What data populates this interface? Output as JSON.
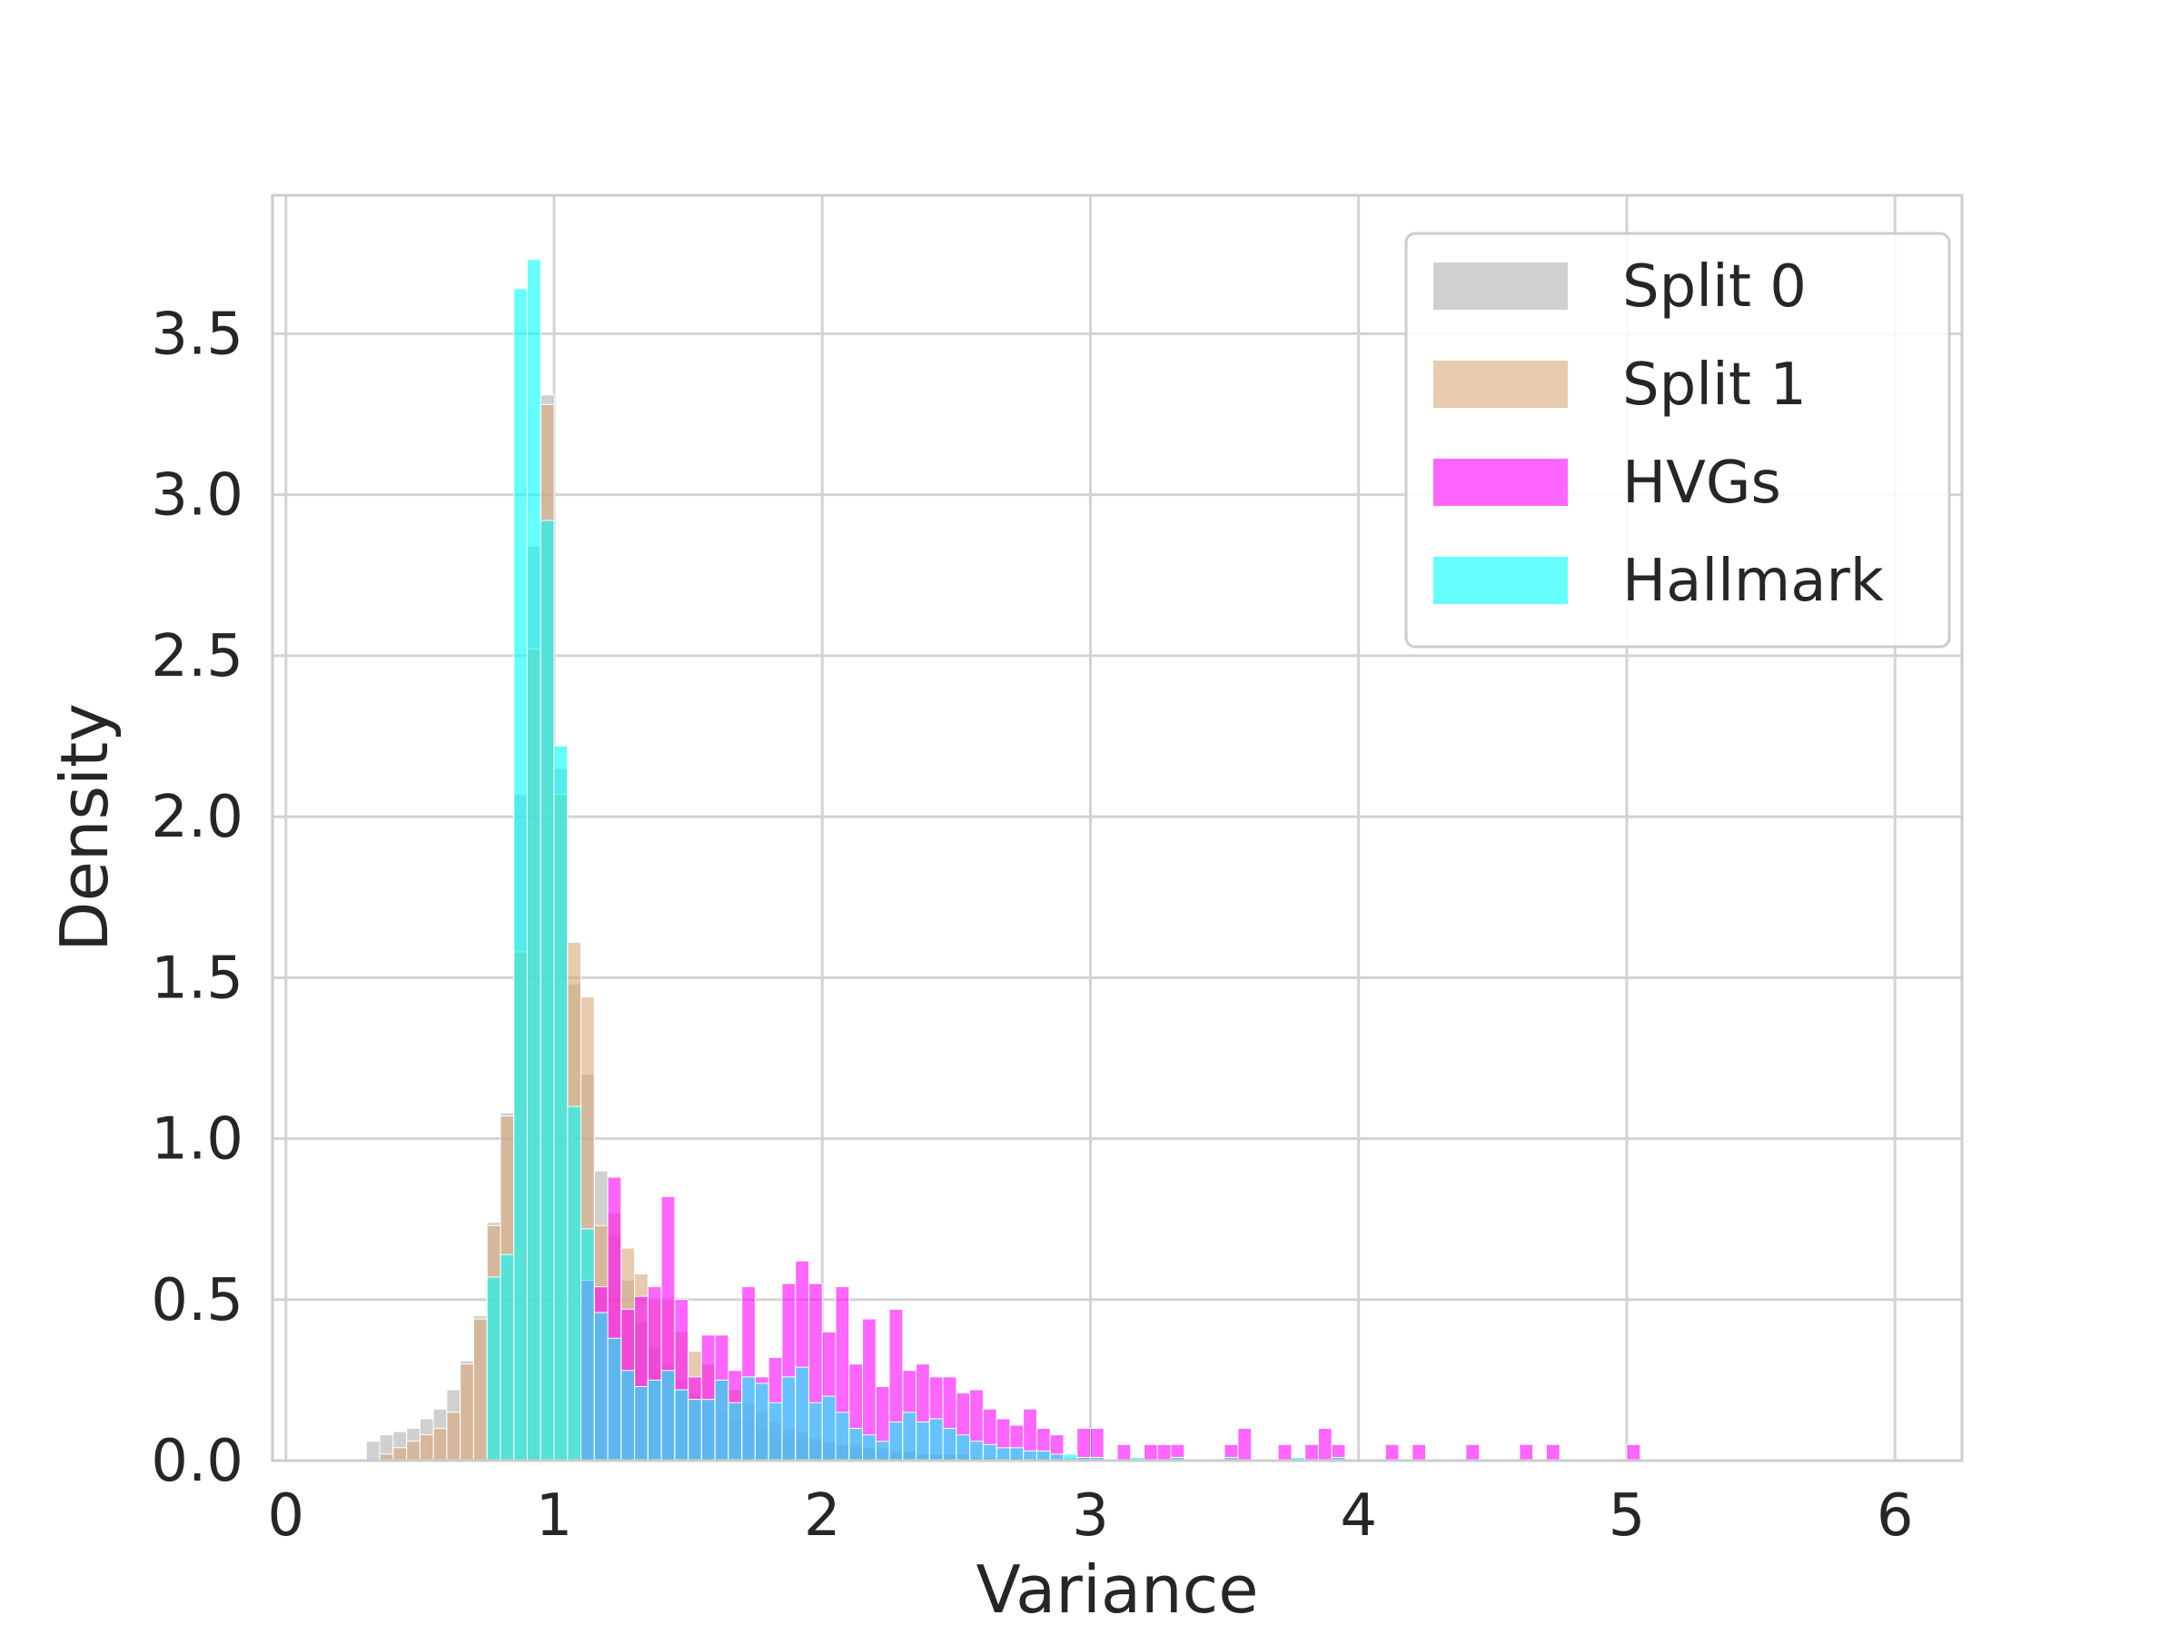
{
  "chart_data": {
    "type": "bar",
    "title": "",
    "xlabel": "Variance",
    "ylabel": "Density",
    "xlim": [
      -0.05,
      6.25
    ],
    "ylim": [
      0,
      3.93
    ],
    "xticks": [
      "0",
      "1",
      "2",
      "3",
      "4",
      "5",
      "6"
    ],
    "yticks": [
      "0.0",
      "0.5",
      "1.0",
      "1.5",
      "2.0",
      "2.5",
      "3.0",
      "3.5"
    ],
    "grid": true,
    "legend_position": "top-right",
    "bin_width": 0.05,
    "series": [
      {
        "name": "Split 0",
        "color": "#b0b0b0",
        "opacity": 0.6,
        "points": [
          [
            0.3,
            0.06
          ],
          [
            0.35,
            0.08
          ],
          [
            0.4,
            0.09
          ],
          [
            0.45,
            0.1
          ],
          [
            0.5,
            0.13
          ],
          [
            0.55,
            0.16
          ],
          [
            0.6,
            0.22
          ],
          [
            0.65,
            0.31
          ],
          [
            0.7,
            0.45
          ],
          [
            0.75,
            0.74
          ],
          [
            0.8,
            1.08
          ],
          [
            0.85,
            2.07
          ],
          [
            0.9,
            2.84
          ],
          [
            0.95,
            3.31
          ],
          [
            1.0,
            2.15
          ],
          [
            1.05,
            1.48
          ],
          [
            1.1,
            1.2
          ],
          [
            1.15,
            0.9
          ],
          [
            1.2,
            0.7
          ],
          [
            1.25,
            0.56
          ],
          [
            1.3,
            0.43
          ],
          [
            1.35,
            0.35
          ],
          [
            1.4,
            0.3
          ],
          [
            1.45,
            0.25
          ],
          [
            1.5,
            0.21
          ],
          [
            1.55,
            0.18
          ],
          [
            1.6,
            0.15
          ],
          [
            1.65,
            0.13
          ],
          [
            1.7,
            0.12
          ],
          [
            1.75,
            0.1
          ],
          [
            1.8,
            0.09
          ],
          [
            1.85,
            0.08
          ],
          [
            1.9,
            0.07
          ],
          [
            1.95,
            0.06
          ],
          [
            2.0,
            0.05
          ],
          [
            2.05,
            0.05
          ],
          [
            2.1,
            0.04
          ],
          [
            2.15,
            0.04
          ],
          [
            2.2,
            0.03
          ],
          [
            2.25,
            0.03
          ],
          [
            2.3,
            0.03
          ],
          [
            2.35,
            0.02
          ],
          [
            2.4,
            0.02
          ],
          [
            2.45,
            0.02
          ],
          [
            2.5,
            0.02
          ],
          [
            2.55,
            0.01
          ],
          [
            2.6,
            0.01
          ],
          [
            2.7,
            0.01
          ],
          [
            2.8,
            0.01
          ],
          [
            2.9,
            0.01
          ]
        ]
      },
      {
        "name": "Split 1",
        "color": "#d9a679",
        "opacity": 0.6,
        "points": [
          [
            0.35,
            0.02
          ],
          [
            0.4,
            0.04
          ],
          [
            0.45,
            0.06
          ],
          [
            0.5,
            0.08
          ],
          [
            0.55,
            0.1
          ],
          [
            0.6,
            0.15
          ],
          [
            0.65,
            0.3
          ],
          [
            0.7,
            0.44
          ],
          [
            0.75,
            0.73
          ],
          [
            0.8,
            1.07
          ],
          [
            0.85,
            1.58
          ],
          [
            0.9,
            2.52
          ],
          [
            0.95,
            3.28
          ],
          [
            1.0,
            2.07
          ],
          [
            1.05,
            1.61
          ],
          [
            1.1,
            1.44
          ],
          [
            1.15,
            0.73
          ],
          [
            1.2,
            0.77
          ],
          [
            1.25,
            0.66
          ],
          [
            1.3,
            0.58
          ],
          [
            1.35,
            0.5
          ],
          [
            1.4,
            0.5
          ],
          [
            1.45,
            0.4
          ],
          [
            1.5,
            0.34
          ],
          [
            1.55,
            0.3
          ],
          [
            1.6,
            0.25
          ],
          [
            1.65,
            0.22
          ],
          [
            1.7,
            0.18
          ],
          [
            1.75,
            0.15
          ],
          [
            1.8,
            0.12
          ],
          [
            1.85,
            0.1
          ],
          [
            1.9,
            0.09
          ],
          [
            1.95,
            0.07
          ],
          [
            2.0,
            0.06
          ],
          [
            2.05,
            0.05
          ],
          [
            2.1,
            0.05
          ],
          [
            2.15,
            0.04
          ],
          [
            2.2,
            0.04
          ],
          [
            2.25,
            0.03
          ],
          [
            2.3,
            0.03
          ],
          [
            2.35,
            0.02
          ],
          [
            2.4,
            0.02
          ],
          [
            2.45,
            0.02
          ],
          [
            2.5,
            0.02
          ],
          [
            2.55,
            0.01
          ],
          [
            2.6,
            0.01
          ],
          [
            2.7,
            0.01
          ]
        ]
      },
      {
        "name": "HVGs",
        "color": "#ff00ff",
        "opacity": 0.6,
        "points": [
          [
            1.1,
            0.56
          ],
          [
            1.15,
            0.54
          ],
          [
            1.2,
            0.88
          ],
          [
            1.25,
            0.47
          ],
          [
            1.3,
            0.51
          ],
          [
            1.35,
            0.54
          ],
          [
            1.4,
            0.82
          ],
          [
            1.45,
            0.5
          ],
          [
            1.5,
            0.26
          ],
          [
            1.55,
            0.39
          ],
          [
            1.6,
            0.39
          ],
          [
            1.65,
            0.28
          ],
          [
            1.7,
            0.54
          ],
          [
            1.75,
            0.26
          ],
          [
            1.8,
            0.32
          ],
          [
            1.85,
            0.55
          ],
          [
            1.9,
            0.62
          ],
          [
            1.95,
            0.55
          ],
          [
            2.0,
            0.4
          ],
          [
            2.05,
            0.54
          ],
          [
            2.1,
            0.3
          ],
          [
            2.15,
            0.44
          ],
          [
            2.2,
            0.23
          ],
          [
            2.25,
            0.47
          ],
          [
            2.3,
            0.28
          ],
          [
            2.35,
            0.3
          ],
          [
            2.4,
            0.26
          ],
          [
            2.45,
            0.26
          ],
          [
            2.5,
            0.21
          ],
          [
            2.55,
            0.22
          ],
          [
            2.6,
            0.16
          ],
          [
            2.65,
            0.13
          ],
          [
            2.7,
            0.11
          ],
          [
            2.75,
            0.16
          ],
          [
            2.8,
            0.1
          ],
          [
            2.85,
            0.08
          ],
          [
            2.95,
            0.1
          ],
          [
            3.0,
            0.1
          ],
          [
            3.1,
            0.05
          ],
          [
            3.2,
            0.05
          ],
          [
            3.25,
            0.05
          ],
          [
            3.3,
            0.05
          ],
          [
            3.5,
            0.05
          ],
          [
            3.55,
            0.1
          ],
          [
            3.7,
            0.05
          ],
          [
            3.8,
            0.05
          ],
          [
            3.85,
            0.1
          ],
          [
            3.9,
            0.05
          ],
          [
            4.1,
            0.05
          ],
          [
            4.2,
            0.05
          ],
          [
            4.4,
            0.05
          ],
          [
            4.6,
            0.05
          ],
          [
            4.7,
            0.05
          ],
          [
            5.0,
            0.05
          ]
        ]
      },
      {
        "name": "Hallmark",
        "color": "#00ffff",
        "opacity": 0.6,
        "points": [
          [
            0.75,
            0.57
          ],
          [
            0.8,
            0.64
          ],
          [
            0.85,
            3.64
          ],
          [
            0.9,
            3.73
          ],
          [
            0.95,
            2.92
          ],
          [
            1.0,
            2.22
          ],
          [
            1.05,
            1.1
          ],
          [
            1.1,
            0.72
          ],
          [
            1.15,
            0.46
          ],
          [
            1.2,
            0.38
          ],
          [
            1.25,
            0.28
          ],
          [
            1.3,
            0.23
          ],
          [
            1.35,
            0.25
          ],
          [
            1.4,
            0.28
          ],
          [
            1.45,
            0.22
          ],
          [
            1.5,
            0.19
          ],
          [
            1.55,
            0.19
          ],
          [
            1.6,
            0.25
          ],
          [
            1.65,
            0.18
          ],
          [
            1.7,
            0.26
          ],
          [
            1.75,
            0.24
          ],
          [
            1.8,
            0.18
          ],
          [
            1.85,
            0.26
          ],
          [
            1.9,
            0.29
          ],
          [
            1.95,
            0.18
          ],
          [
            2.0,
            0.2
          ],
          [
            2.05,
            0.15
          ],
          [
            2.1,
            0.1
          ],
          [
            2.15,
            0.08
          ],
          [
            2.2,
            0.06
          ],
          [
            2.25,
            0.12
          ],
          [
            2.3,
            0.15
          ],
          [
            2.35,
            0.12
          ],
          [
            2.4,
            0.13
          ],
          [
            2.45,
            0.1
          ],
          [
            2.5,
            0.08
          ],
          [
            2.55,
            0.06
          ],
          [
            2.6,
            0.05
          ],
          [
            2.65,
            0.04
          ],
          [
            2.7,
            0.04
          ],
          [
            2.75,
            0.03
          ],
          [
            2.8,
            0.03
          ],
          [
            2.85,
            0.02
          ],
          [
            2.9,
            0.02
          ],
          [
            2.95,
            0.01
          ],
          [
            3.0,
            0.01
          ],
          [
            3.15,
            0.01
          ],
          [
            3.3,
            0.01
          ],
          [
            3.5,
            0.01
          ],
          [
            3.75,
            0.01
          ],
          [
            3.9,
            0.01
          ]
        ]
      }
    ]
  }
}
